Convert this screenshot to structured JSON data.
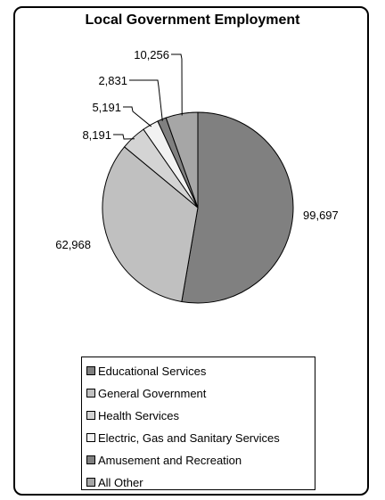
{
  "chart_data": {
    "type": "pie",
    "title": "Local Government Employment",
    "categories": [
      "Educational Services",
      "General Government",
      "Health Services",
      "Electric, Gas and Sanitary Services",
      "Amusement and Recreation",
      "All Other"
    ],
    "values": [
      99697,
      62968,
      8191,
      5191,
      2831,
      10256
    ],
    "value_labels": [
      "99,697",
      "62,968",
      "8,191",
      "5,191",
      "2,831",
      "10,256"
    ],
    "colors": [
      "#808080",
      "#c0c0c0",
      "#d4d4d4",
      "#f2f2f2",
      "#808080",
      "#a6a6a6"
    ],
    "legend_placement": "bottom"
  }
}
